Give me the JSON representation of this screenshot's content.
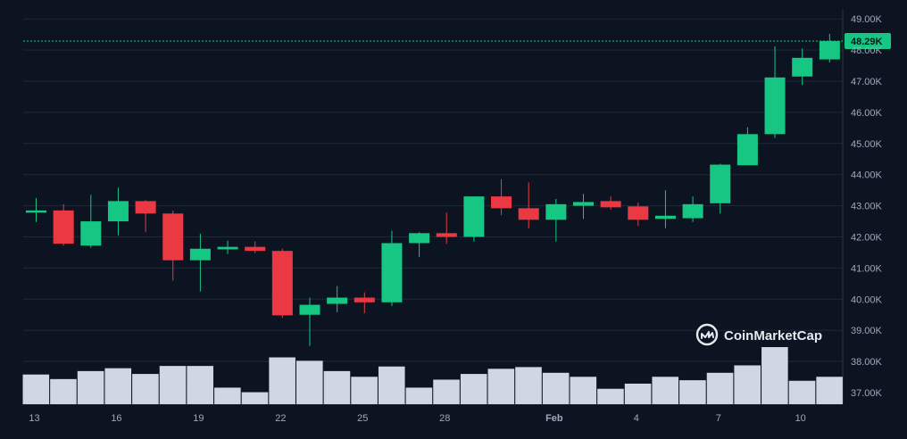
{
  "chart_data": {
    "type": "candlestick",
    "y_unit": "K",
    "ylim": [
      36.6,
      49.2
    ],
    "y_ticks": [
      "49.00K",
      "48.00K",
      "47.00K",
      "46.00K",
      "45.00K",
      "44.00K",
      "43.00K",
      "42.00K",
      "41.00K",
      "40.00K",
      "39.00K",
      "38.00K",
      "37.00K"
    ],
    "x_ticks": [
      {
        "label": "13",
        "index": 0,
        "bold": false
      },
      {
        "label": "16",
        "index": 3,
        "bold": false
      },
      {
        "label": "19",
        "index": 6,
        "bold": false
      },
      {
        "label": "22",
        "index": 9,
        "bold": false
      },
      {
        "label": "25",
        "index": 12,
        "bold": false
      },
      {
        "label": "28",
        "index": 15,
        "bold": false
      },
      {
        "label": "Feb",
        "index": 19,
        "bold": true
      },
      {
        "label": "4",
        "index": 22,
        "bold": false
      },
      {
        "label": "7",
        "index": 25,
        "bold": false
      },
      {
        "label": "10",
        "index": 28,
        "bold": false
      }
    ],
    "current_price": {
      "label": "48.29K",
      "value": 48.29
    },
    "candles": [
      {
        "open": 42.78,
        "high": 43.25,
        "low": 42.48,
        "close": 42.85
      },
      {
        "open": 42.85,
        "high": 43.05,
        "low": 41.72,
        "close": 41.78
      },
      {
        "open": 41.72,
        "high": 43.35,
        "low": 41.65,
        "close": 42.5
      },
      {
        "open": 42.5,
        "high": 43.58,
        "low": 42.05,
        "close": 43.15
      },
      {
        "open": 43.15,
        "high": 43.18,
        "low": 42.15,
        "close": 42.75
      },
      {
        "open": 42.75,
        "high": 42.85,
        "low": 40.6,
        "close": 41.25
      },
      {
        "open": 41.25,
        "high": 42.1,
        "low": 40.25,
        "close": 41.62
      },
      {
        "open": 41.6,
        "high": 41.88,
        "low": 41.45,
        "close": 41.68
      },
      {
        "open": 41.68,
        "high": 41.85,
        "low": 41.48,
        "close": 41.55
      },
      {
        "open": 41.55,
        "high": 41.62,
        "low": 39.4,
        "close": 39.48
      },
      {
        "open": 39.5,
        "high": 40.05,
        "low": 38.5,
        "close": 39.82
      },
      {
        "open": 39.85,
        "high": 40.42,
        "low": 39.58,
        "close": 40.05
      },
      {
        "open": 40.05,
        "high": 40.22,
        "low": 39.55,
        "close": 39.9
      },
      {
        "open": 39.9,
        "high": 42.2,
        "low": 39.78,
        "close": 41.8
      },
      {
        "open": 41.8,
        "high": 42.15,
        "low": 41.35,
        "close": 42.12
      },
      {
        "open": 42.12,
        "high": 42.78,
        "low": 41.78,
        "close": 42.0
      },
      {
        "open": 42.0,
        "high": 43.3,
        "low": 41.85,
        "close": 43.3
      },
      {
        "open": 43.3,
        "high": 43.85,
        "low": 42.7,
        "close": 42.92
      },
      {
        "open": 42.92,
        "high": 43.75,
        "low": 42.28,
        "close": 42.55
      },
      {
        "open": 42.55,
        "high": 43.22,
        "low": 41.85,
        "close": 43.05
      },
      {
        "open": 43.0,
        "high": 43.38,
        "low": 42.58,
        "close": 43.12
      },
      {
        "open": 43.15,
        "high": 43.3,
        "low": 42.88,
        "close": 42.95
      },
      {
        "open": 42.98,
        "high": 43.1,
        "low": 42.35,
        "close": 42.55
      },
      {
        "open": 42.58,
        "high": 43.5,
        "low": 42.28,
        "close": 42.68
      },
      {
        "open": 42.6,
        "high": 43.3,
        "low": 42.48,
        "close": 43.05
      },
      {
        "open": 43.08,
        "high": 44.35,
        "low": 42.75,
        "close": 44.32
      },
      {
        "open": 44.3,
        "high": 45.52,
        "low": 44.3,
        "close": 45.3
      },
      {
        "open": 45.3,
        "high": 48.12,
        "low": 45.18,
        "close": 47.12
      },
      {
        "open": 47.15,
        "high": 48.05,
        "low": 46.88,
        "close": 47.75
      },
      {
        "open": 47.7,
        "high": 48.52,
        "low": 47.6,
        "close": 48.29
      }
    ],
    "volume_relative": [
      0.52,
      0.44,
      0.58,
      0.63,
      0.53,
      0.67,
      0.67,
      0.29,
      0.21,
      0.82,
      0.76,
      0.58,
      0.48,
      0.66,
      0.29,
      0.43,
      0.53,
      0.62,
      0.65,
      0.55,
      0.48,
      0.27,
      0.36,
      0.48,
      0.42,
      0.55,
      0.68,
      1.0,
      0.41,
      0.48
    ]
  },
  "colors": {
    "background": "#0d1421",
    "up": "#16c784",
    "down": "#ea3943",
    "volume": "#cfd6e4",
    "grid": "#1f2837",
    "axis_text": "#a1a7bb"
  },
  "watermark": {
    "text": "CoinMarketCap",
    "icon": "coinmarketcap-logo-icon"
  }
}
